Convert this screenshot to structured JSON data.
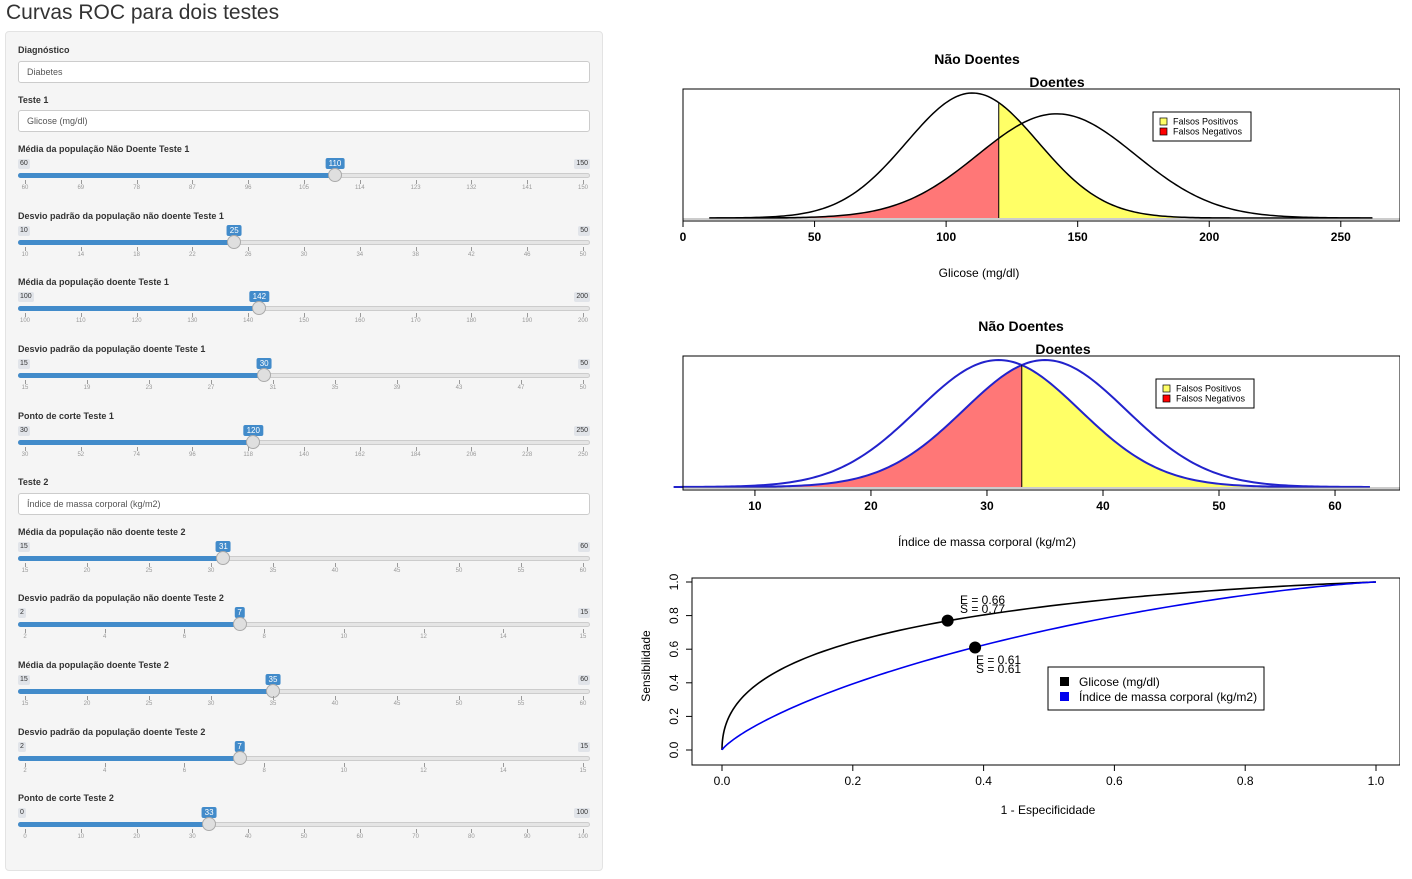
{
  "app": {
    "title": "Curvas ROC para dois testes"
  },
  "sidebar": {
    "diagnostico": {
      "label": "Diagnóstico",
      "value": "Diabetes"
    },
    "teste1": {
      "label": "Teste 1",
      "value": "Glicose (mg/dl)"
    },
    "teste2": {
      "label": "Teste 2",
      "value": "Índice de massa corporal (kg/m2)"
    },
    "sliders": [
      {
        "label": "Média da população Não Doente Teste 1",
        "min": 60,
        "max": 150,
        "value": 110,
        "ticks": [
          "60",
          "69",
          "78",
          "87",
          "96",
          "105",
          "114",
          "123",
          "132",
          "141",
          "150"
        ]
      },
      {
        "label": "Desvio padrão da população não doente Teste 1",
        "min": 10,
        "max": 50,
        "value": 25,
        "ticks": [
          "10",
          "14",
          "18",
          "22",
          "26",
          "30",
          "34",
          "38",
          "42",
          "46",
          "50"
        ]
      },
      {
        "label": "Média da população doente Teste 1",
        "min": 100,
        "max": 200,
        "value": 142,
        "ticks": [
          "100",
          "110",
          "120",
          "130",
          "140",
          "150",
          "160",
          "170",
          "180",
          "190",
          "200"
        ]
      },
      {
        "label": "Desvio padrão da população doente Teste 1",
        "min": 15,
        "max": 50,
        "value": 30,
        "ticks": [
          "15",
          "19",
          "23",
          "27",
          "31",
          "35",
          "39",
          "43",
          "47",
          "50"
        ]
      },
      {
        "label": "Ponto de corte Teste 1",
        "min": 30,
        "max": 250,
        "value": 120,
        "ticks": [
          "30",
          "52",
          "74",
          "96",
          "118",
          "140",
          "162",
          "184",
          "206",
          "228",
          "250"
        ]
      },
      {
        "label": "Média da população não doente teste 2",
        "min": 15,
        "max": 60,
        "value": 31,
        "ticks": [
          "15",
          "20",
          "25",
          "30",
          "35",
          "40",
          "45",
          "50",
          "55",
          "60"
        ]
      },
      {
        "label": "Desvio padrão da população não doente Teste 2",
        "min": 2,
        "max": 15,
        "value": 7,
        "ticks": [
          "2",
          "4",
          "6",
          "8",
          "10",
          "12",
          "14",
          "15"
        ]
      },
      {
        "label": "Média da população doente Teste 2",
        "min": 15,
        "max": 60,
        "value": 35,
        "ticks": [
          "15",
          "20",
          "25",
          "30",
          "35",
          "40",
          "45",
          "50",
          "55",
          "60"
        ]
      },
      {
        "label": "Desvio padrão da população doente Teste 2",
        "min": 2,
        "max": 15,
        "value": 7,
        "ticks": [
          "2",
          "4",
          "6",
          "8",
          "10",
          "12",
          "14",
          "15"
        ]
      },
      {
        "label": "Ponto de corte Teste 2",
        "min": 0,
        "max": 100,
        "value": 33,
        "ticks": [
          "0",
          "10",
          "20",
          "30",
          "40",
          "50",
          "60",
          "70",
          "80",
          "90",
          "100"
        ]
      }
    ]
  },
  "chart_data": [
    {
      "type": "area",
      "title_top": "Não Doentes",
      "title_bottom": "Doentes",
      "xlabel": "Glicose (mg/dl)",
      "xlim": [
        10,
        262
      ],
      "xticks": [
        0,
        50,
        100,
        150,
        200,
        250
      ],
      "series": [
        {
          "name": "Não Doentes",
          "mean": 110,
          "sd": 25,
          "color": "#000000"
        },
        {
          "name": "Doentes",
          "mean": 142,
          "sd": 30,
          "color": "#000000"
        }
      ],
      "cutoff": 120,
      "legend": [
        {
          "label": "Falsos Positivos",
          "color": "#FFFF66"
        },
        {
          "label": "Falsos Negativos",
          "color": "#FF0000"
        }
      ],
      "fill_fp": "#FFFF66",
      "fill_fn": "#FF7777"
    },
    {
      "type": "area",
      "title_top": "Não Doentes",
      "title_bottom": "Doentes",
      "xlabel": "Índice de massa corporal (kg/m2)",
      "xlim": [
        3,
        63
      ],
      "xticks": [
        10,
        20,
        30,
        40,
        50,
        60
      ],
      "series": [
        {
          "name": "Não Doentes",
          "mean": 31,
          "sd": 7,
          "color": "#2222CC"
        },
        {
          "name": "Doentes",
          "mean": 35,
          "sd": 7,
          "color": "#2222CC"
        }
      ],
      "cutoff": 33,
      "legend": [
        {
          "label": "Falsos Positivos",
          "color": "#FFFF66"
        },
        {
          "label": "Falsos Negativos",
          "color": "#FF0000"
        }
      ],
      "fill_fp": "#FFFF66",
      "fill_fn": "#FF7777"
    },
    {
      "type": "line",
      "xlabel": "1 - Especificidade",
      "ylabel": "Sensibilidade",
      "xlim": [
        0,
        1
      ],
      "ylim": [
        0,
        1
      ],
      "xticks": [
        "0.0",
        "0.2",
        "0.4",
        "0.6",
        "0.8",
        "1.0"
      ],
      "yticks": [
        "0.0",
        "0.2",
        "0.4",
        "0.6",
        "0.8",
        "1.0"
      ],
      "series": [
        {
          "name": "Glicose (mg/dl)",
          "color": "#000000",
          "m0": 110,
          "s0": 25,
          "m1": 142,
          "s1": 30,
          "point": {
            "x": 0.345,
            "y": 0.77
          },
          "label_e": "E =  0.66",
          "label_s": "S =  0.77"
        },
        {
          "name": "Índice de massa corporal (kg/m2)",
          "color": "#0000EE",
          "m0": 31,
          "s0": 7,
          "m1": 35,
          "s1": 7,
          "point": {
            "x": 0.387,
            "y": 0.61
          },
          "label_e": "E =  0.61",
          "label_s": "S =  0.61"
        }
      ]
    }
  ]
}
